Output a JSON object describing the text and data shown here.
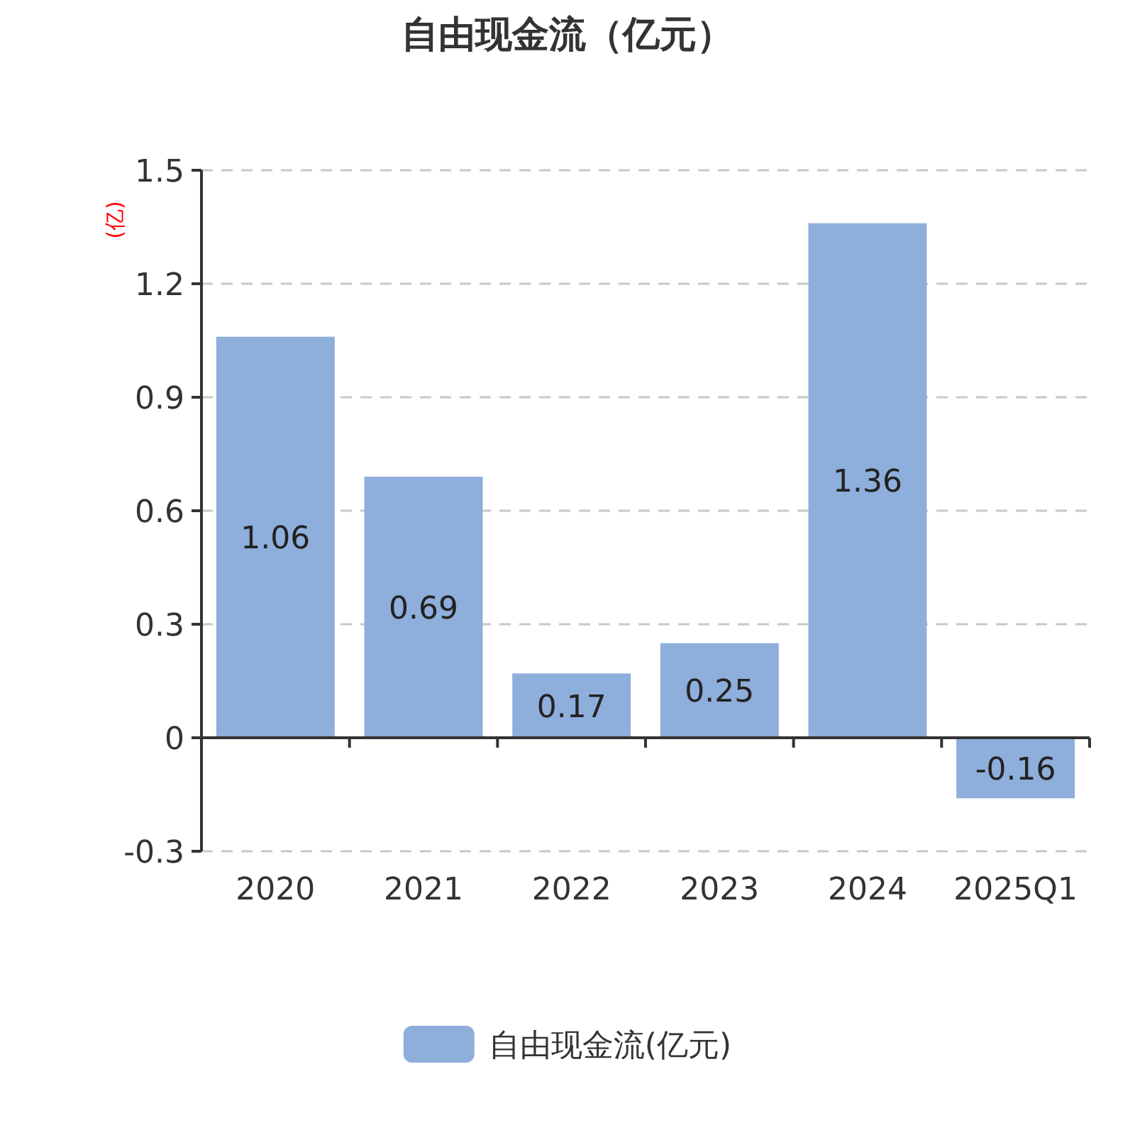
{
  "chart_data": {
    "type": "bar",
    "title": "自由现金流（亿元）",
    "ylabel": "(亿)",
    "categories": [
      "2020",
      "2021",
      "2022",
      "2023",
      "2024",
      "2025Q1"
    ],
    "series": [
      {
        "name": "自由现金流(亿元)",
        "color": "#8eaedb",
        "values": [
          1.06,
          0.69,
          0.17,
          0.25,
          1.36,
          -0.16
        ]
      }
    ],
    "ylim": [
      -0.3,
      1.5
    ],
    "yticks": [
      -0.3,
      0,
      0.3,
      0.6,
      0.9,
      1.2,
      1.5
    ],
    "grid": "y",
    "legend": "bottom",
    "data_labels": true
  }
}
